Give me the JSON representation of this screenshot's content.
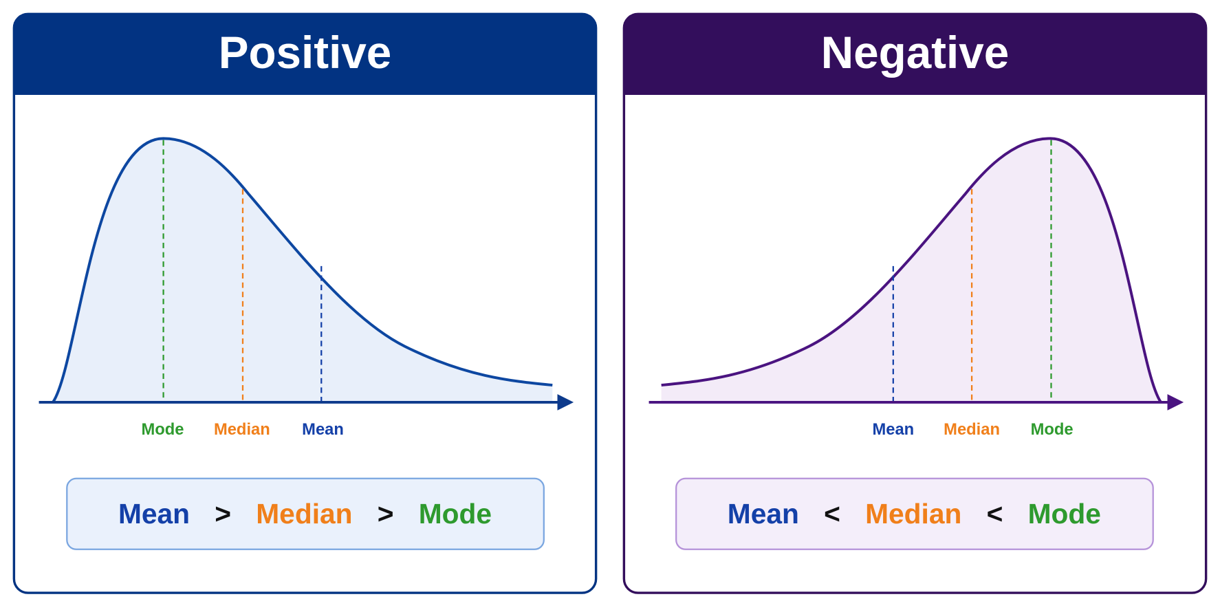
{
  "panels": [
    {
      "title": "Positive",
      "labels": [
        "Mode",
        "Median",
        "Mean"
      ],
      "comparison": [
        "Mean",
        ">",
        "Median",
        ">",
        "Mode"
      ]
    },
    {
      "title": "Negative",
      "labels": [
        "Mean",
        "Median",
        "Mode"
      ],
      "comparison": [
        "Mean",
        "<",
        "Median",
        "<",
        "Mode"
      ]
    }
  ]
}
